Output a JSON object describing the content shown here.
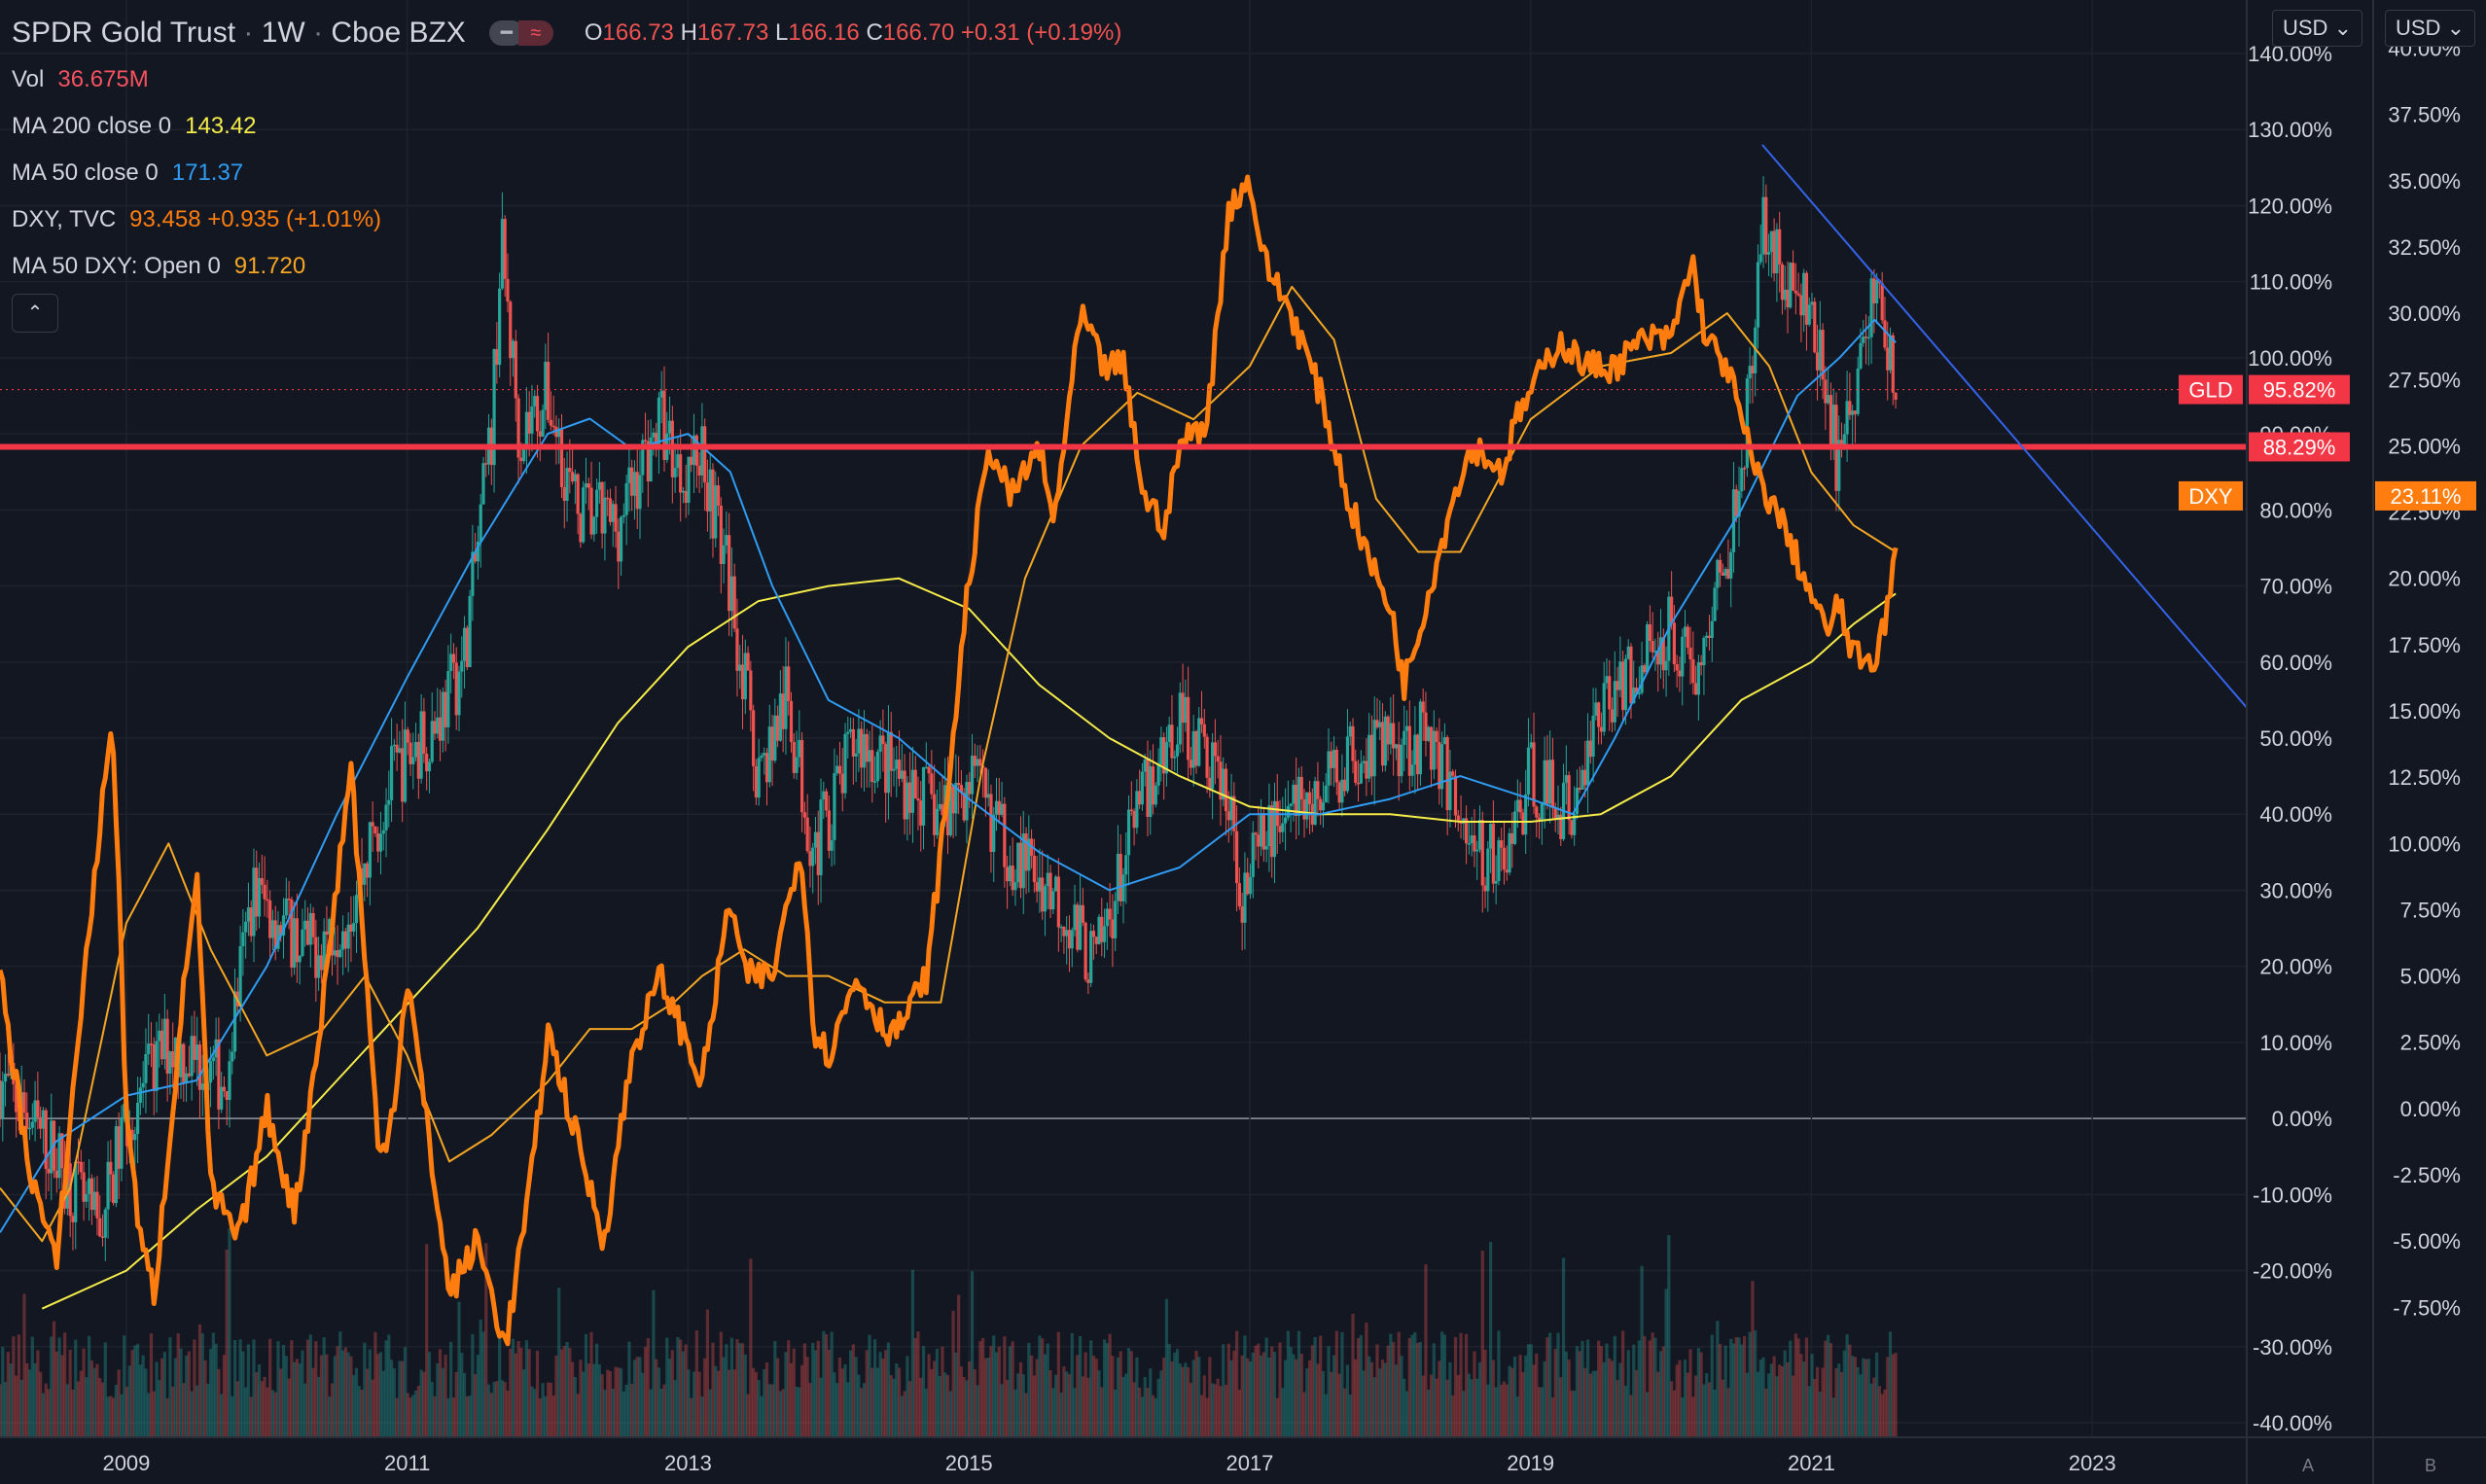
{
  "header": {
    "title": "SPDR Gold Trust",
    "interval": "1W",
    "exchange": "Cboe BZX",
    "open": "166.73",
    "high": "167.73",
    "low": "166.16",
    "close": "166.70",
    "change": "+0.31 (+0.19%)"
  },
  "legend": [
    {
      "name": "Vol",
      "value": "36.675M",
      "color": "#f7525f"
    },
    {
      "name": "MA 200 close 0",
      "value": "143.42",
      "color": "#f5ec4a"
    },
    {
      "name": "MA 50 close 0",
      "value": "171.37",
      "color": "#2f9bf2"
    },
    {
      "name": "DXY, TVC",
      "value": "93.458  +0.935 (+1.01%)",
      "color": "#ff7d0e"
    },
    {
      "name": "MA 50 DXY: Open 0",
      "value": "91.720",
      "color": "#f5a623"
    }
  ],
  "buttons": {
    "currency_left": "USD",
    "currency_right": "USD",
    "auto": "A",
    "log": "B",
    "chevron_down": "⌄",
    "collapse": "⌃"
  },
  "colors": {
    "up": "#26a69a",
    "down": "#ef5350",
    "dxy": "#ff7d0e",
    "dxy_ma": "#f5a623",
    "ma200": "#f5ec4a",
    "ma50": "#2f9bf2",
    "hline": "#f23645",
    "trend": "#3563e9"
  },
  "chart_data": {
    "type": "line",
    "x_ticks": [
      "2009",
      "2011",
      "2013",
      "2015",
      "2017",
      "2019",
      "2021",
      "2023"
    ],
    "x_range": [
      2008.1,
      2024.1
    ],
    "left_axis_ticks": [
      "140.00%",
      "130.00%",
      "120.00%",
      "110.00%",
      "100.00%",
      "90.00%",
      "80.00%",
      "70.00%",
      "60.00%",
      "50.00%",
      "40.00%",
      "30.00%",
      "20.00%",
      "10.00%",
      "0.00%",
      "-10.00%",
      "-20.00%",
      "-30.00%",
      "-40.00%"
    ],
    "right_axis_ticks": [
      "40.00%",
      "37.50%",
      "35.00%",
      "32.50%",
      "30.00%",
      "27.50%",
      "25.00%",
      "22.50%",
      "20.00%",
      "17.50%",
      "15.00%",
      "12.50%",
      "10.00%",
      "7.50%",
      "5.00%",
      "2.50%",
      "0.00%",
      "-2.50%",
      "-5.00%",
      "-7.50%"
    ],
    "left_range": [
      -40,
      140
    ],
    "right_range": [
      -9.8,
      39.8
    ],
    "series": [
      {
        "name": "GLD",
        "axis": "left",
        "points": [
          [
            2008.1,
            5
          ],
          [
            2008.5,
            -5
          ],
          [
            2008.8,
            -15
          ],
          [
            2009.0,
            0
          ],
          [
            2009.3,
            10
          ],
          [
            2009.7,
            5
          ],
          [
            2009.9,
            30
          ],
          [
            2010.3,
            22
          ],
          [
            2010.6,
            28
          ],
          [
            2010.9,
            45
          ],
          [
            2011.2,
            52
          ],
          [
            2011.4,
            60
          ],
          [
            2011.6,
            90
          ],
          [
            2011.67,
            115
          ],
          [
            2011.8,
            90
          ],
          [
            2012.0,
            95
          ],
          [
            2012.2,
            80
          ],
          [
            2012.5,
            78
          ],
          [
            2012.8,
            92
          ],
          [
            2012.95,
            85
          ],
          [
            2013.1,
            88
          ],
          [
            2013.3,
            70
          ],
          [
            2013.5,
            45
          ],
          [
            2013.7,
            55
          ],
          [
            2013.9,
            35
          ],
          [
            2014.2,
            50
          ],
          [
            2014.5,
            45
          ],
          [
            2014.8,
            40
          ],
          [
            2015.0,
            45
          ],
          [
            2015.3,
            35
          ],
          [
            2015.6,
            30
          ],
          [
            2015.9,
            20
          ],
          [
            2016.2,
            40
          ],
          [
            2016.5,
            53
          ],
          [
            2016.8,
            45
          ],
          [
            2016.95,
            30
          ],
          [
            2017.2,
            40
          ],
          [
            2017.5,
            42
          ],
          [
            2017.7,
            48
          ],
          [
            2018.0,
            50
          ],
          [
            2018.3,
            50
          ],
          [
            2018.6,
            35
          ],
          [
            2018.8,
            33
          ],
          [
            2019.0,
            45
          ],
          [
            2019.3,
            40
          ],
          [
            2019.5,
            55
          ],
          [
            2019.8,
            60
          ],
          [
            2020.0,
            65
          ],
          [
            2020.2,
            58
          ],
          [
            2020.4,
            75
          ],
          [
            2020.6,
            100
          ],
          [
            2020.65,
            120
          ],
          [
            2020.8,
            110
          ],
          [
            2021.0,
            105
          ],
          [
            2021.2,
            85
          ],
          [
            2021.35,
            100
          ],
          [
            2021.45,
            110
          ],
          [
            2021.55,
            100
          ],
          [
            2021.6,
            95
          ]
        ]
      },
      {
        "name": "MA 50",
        "axis": "left",
        "points": [
          [
            2008.1,
            -15
          ],
          [
            2008.5,
            -3
          ],
          [
            2009.0,
            3
          ],
          [
            2009.5,
            5
          ],
          [
            2010.0,
            20
          ],
          [
            2010.5,
            40
          ],
          [
            2011.0,
            58
          ],
          [
            2011.5,
            75
          ],
          [
            2012.0,
            90
          ],
          [
            2012.3,
            92
          ],
          [
            2012.6,
            88
          ],
          [
            2013.0,
            90
          ],
          [
            2013.3,
            85
          ],
          [
            2013.6,
            70
          ],
          [
            2014.0,
            55
          ],
          [
            2014.5,
            50
          ],
          [
            2015.0,
            42
          ],
          [
            2015.5,
            35
          ],
          [
            2016.0,
            30
          ],
          [
            2016.5,
            33
          ],
          [
            2017.0,
            40
          ],
          [
            2017.5,
            40
          ],
          [
            2018.0,
            42
          ],
          [
            2018.5,
            45
          ],
          [
            2019.0,
            42
          ],
          [
            2019.3,
            40
          ],
          [
            2019.6,
            50
          ],
          [
            2020.0,
            65
          ],
          [
            2020.5,
            80
          ],
          [
            2020.9,
            95
          ],
          [
            2021.2,
            100
          ],
          [
            2021.45,
            105
          ],
          [
            2021.6,
            102
          ]
        ]
      },
      {
        "name": "MA 200",
        "axis": "left",
        "points": [
          [
            2008.4,
            -25
          ],
          [
            2009.0,
            -20
          ],
          [
            2009.5,
            -12
          ],
          [
            2010.0,
            -5
          ],
          [
            2010.5,
            5
          ],
          [
            2011.0,
            15
          ],
          [
            2011.5,
            25
          ],
          [
            2012.0,
            38
          ],
          [
            2012.5,
            52
          ],
          [
            2013.0,
            62
          ],
          [
            2013.5,
            68
          ],
          [
            2014.0,
            70
          ],
          [
            2014.5,
            71
          ],
          [
            2015.0,
            67
          ],
          [
            2015.5,
            57
          ],
          [
            2016.0,
            50
          ],
          [
            2016.5,
            45
          ],
          [
            2017.0,
            41
          ],
          [
            2017.5,
            40
          ],
          [
            2018.0,
            40
          ],
          [
            2018.5,
            39
          ],
          [
            2019.0,
            39
          ],
          [
            2019.5,
            40
          ],
          [
            2020.0,
            45
          ],
          [
            2020.5,
            55
          ],
          [
            2021.0,
            60
          ],
          [
            2021.3,
            65
          ],
          [
            2021.6,
            69
          ]
        ]
      },
      {
        "name": "DXY",
        "axis": "right",
        "points": [
          [
            2008.1,
            5
          ],
          [
            2008.3,
            -2
          ],
          [
            2008.5,
            -6
          ],
          [
            2008.7,
            5
          ],
          [
            2008.9,
            15
          ],
          [
            2009.0,
            0
          ],
          [
            2009.1,
            -5
          ],
          [
            2009.2,
            -7
          ],
          [
            2009.4,
            4
          ],
          [
            2009.5,
            9
          ],
          [
            2009.6,
            -3
          ],
          [
            2009.8,
            -5
          ],
          [
            2010.0,
            0
          ],
          [
            2010.2,
            -4
          ],
          [
            2010.4,
            4
          ],
          [
            2010.6,
            13
          ],
          [
            2010.8,
            -2
          ],
          [
            2010.9,
            0
          ],
          [
            2011.0,
            5
          ],
          [
            2011.2,
            -3
          ],
          [
            2011.3,
            -7
          ],
          [
            2011.5,
            -5
          ],
          [
            2011.7,
            -9
          ],
          [
            2011.9,
            -2
          ],
          [
            2012.0,
            3
          ],
          [
            2012.2,
            -1
          ],
          [
            2012.4,
            -5
          ],
          [
            2012.6,
            2
          ],
          [
            2012.8,
            5
          ],
          [
            2012.95,
            3
          ],
          [
            2013.1,
            1
          ],
          [
            2013.3,
            8
          ],
          [
            2013.4,
            5
          ],
          [
            2013.6,
            5
          ],
          [
            2013.8,
            10
          ],
          [
            2013.9,
            3
          ],
          [
            2014.0,
            2
          ],
          [
            2014.2,
            5
          ],
          [
            2014.4,
            3
          ],
          [
            2014.5,
            3
          ],
          [
            2014.7,
            5
          ],
          [
            2014.85,
            12
          ],
          [
            2015.0,
            20
          ],
          [
            2015.15,
            25
          ],
          [
            2015.3,
            23
          ],
          [
            2015.5,
            25
          ],
          [
            2015.6,
            22
          ],
          [
            2015.8,
            30
          ],
          [
            2015.95,
            28
          ],
          [
            2016.1,
            28
          ],
          [
            2016.25,
            23
          ],
          [
            2016.4,
            22
          ],
          [
            2016.5,
            25
          ],
          [
            2016.7,
            26
          ],
          [
            2016.85,
            34
          ],
          [
            2017.0,
            35
          ],
          [
            2017.1,
            32
          ],
          [
            2017.3,
            30
          ],
          [
            2017.5,
            27
          ],
          [
            2017.7,
            23
          ],
          [
            2017.9,
            20
          ],
          [
            2018.0,
            19
          ],
          [
            2018.1,
            16
          ],
          [
            2018.3,
            20
          ],
          [
            2018.5,
            24
          ],
          [
            2018.6,
            25
          ],
          [
            2018.8,
            24
          ],
          [
            2018.9,
            26
          ],
          [
            2019.0,
            27
          ],
          [
            2019.2,
            29
          ],
          [
            2019.4,
            28
          ],
          [
            2019.6,
            28
          ],
          [
            2019.8,
            29
          ],
          [
            2020.0,
            29
          ],
          [
            2020.15,
            32
          ],
          [
            2020.25,
            29
          ],
          [
            2020.4,
            28
          ],
          [
            2020.6,
            24
          ],
          [
            2020.8,
            22
          ],
          [
            2020.95,
            20
          ],
          [
            2021.1,
            18
          ],
          [
            2021.2,
            19
          ],
          [
            2021.3,
            17
          ],
          [
            2021.45,
            17
          ],
          [
            2021.55,
            19
          ],
          [
            2021.6,
            21
          ]
        ]
      },
      {
        "name": "DXY MA 50",
        "axis": "right",
        "points": [
          [
            2008.1,
            -3
          ],
          [
            2008.4,
            -5
          ],
          [
            2008.6,
            -3
          ],
          [
            2009.0,
            7
          ],
          [
            2009.3,
            10
          ],
          [
            2009.6,
            6
          ],
          [
            2010.0,
            2
          ],
          [
            2010.4,
            3
          ],
          [
            2010.7,
            5
          ],
          [
            2011.0,
            2
          ],
          [
            2011.3,
            -2
          ],
          [
            2011.6,
            -1
          ],
          [
            2012.0,
            1
          ],
          [
            2012.3,
            3
          ],
          [
            2012.6,
            3
          ],
          [
            2012.9,
            4
          ],
          [
            2013.1,
            5
          ],
          [
            2013.4,
            6
          ],
          [
            2013.7,
            5
          ],
          [
            2014.0,
            5
          ],
          [
            2014.4,
            4
          ],
          [
            2014.8,
            4
          ],
          [
            2015.1,
            13
          ],
          [
            2015.4,
            20
          ],
          [
            2015.8,
            25
          ],
          [
            2016.2,
            27
          ],
          [
            2016.6,
            26
          ],
          [
            2017.0,
            28
          ],
          [
            2017.3,
            31
          ],
          [
            2017.6,
            29
          ],
          [
            2017.9,
            23
          ],
          [
            2018.2,
            21
          ],
          [
            2018.5,
            21
          ],
          [
            2018.8,
            24
          ],
          [
            2019.0,
            26
          ],
          [
            2019.5,
            28
          ],
          [
            2020.0,
            28.5
          ],
          [
            2020.4,
            30
          ],
          [
            2020.7,
            28
          ],
          [
            2021.0,
            24
          ],
          [
            2021.3,
            22
          ],
          [
            2021.6,
            21
          ]
        ]
      }
    ],
    "current_labels": [
      {
        "name": "GLD",
        "value": "95.82%",
        "color": "#f23645",
        "axis": "left"
      },
      {
        "name": "",
        "value": "88.29%",
        "color": "#f23645",
        "axis": "left"
      },
      {
        "name": "DXY",
        "value": "23.11%",
        "color": "#ff7d0e",
        "axis": "right"
      }
    ],
    "horizontal_line_value": 88.29,
    "trendline": [
      [
        2020.65,
        128
      ],
      [
        2024.1,
        54
      ]
    ]
  }
}
